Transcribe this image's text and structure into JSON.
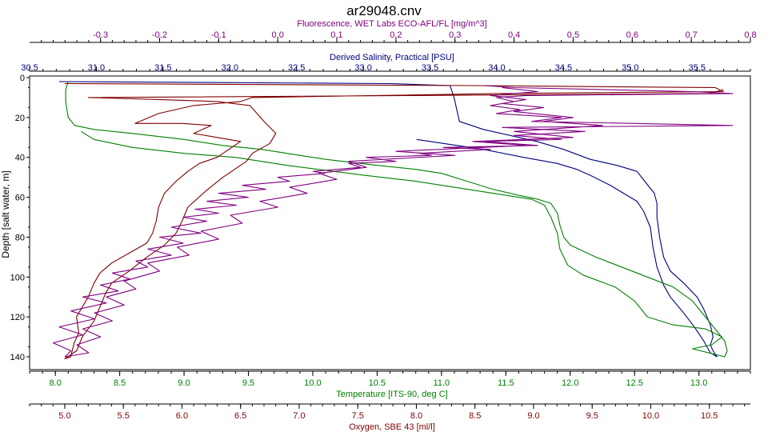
{
  "chart_data": {
    "type": "line",
    "title": "ar29048.cnv",
    "grid": false,
    "legend": "none",
    "y_axis": {
      "label": "Depth [salt water, m]",
      "range": [
        0,
        145
      ],
      "inverted": true,
      "ticks": [
        0,
        20,
        40,
        60,
        80,
        100,
        120,
        140
      ]
    },
    "x_axes": [
      {
        "id": "fluorescence",
        "position": "top-outer",
        "label": "Fluorescence, WET Labs ECO-AFL/FL [mg/m^3]",
        "color": "#800080",
        "range": [
          -0.42,
          0.8
        ],
        "ticks": [
          -0.3,
          -0.2,
          -0.1,
          0.0,
          0.1,
          0.2,
          0.3,
          0.4,
          0.5,
          0.6,
          0.7,
          0.8
        ],
        "tick_labels": [
          "-0.3",
          "-0.2",
          "-0.1",
          "0.0",
          "0.1",
          "0.2",
          "0.3",
          "0.4",
          "0.5",
          "0.6",
          "0.7",
          "0.8"
        ]
      },
      {
        "id": "salinity",
        "position": "top-inner",
        "label": "Derived Salinity, Practical [PSU]",
        "color": "#000080",
        "range": [
          30.5,
          35.9
        ],
        "ticks": [
          30.5,
          31.0,
          31.5,
          32.0,
          32.5,
          33.0,
          33.5,
          34.0,
          34.5,
          35.0,
          35.5
        ],
        "tick_labels": [
          "30.5",
          "31.0",
          "31.5",
          "32.0",
          "32.5",
          "33.0",
          "33.5",
          "34.0",
          "34.5",
          "35.0",
          "35.5"
        ]
      },
      {
        "id": "temperature",
        "position": "bottom-inner",
        "label": "Temperature [ITS-90, deg C]",
        "color": "#008000",
        "range": [
          7.8,
          13.4
        ],
        "ticks": [
          8.0,
          8.5,
          9.0,
          9.5,
          10.0,
          10.5,
          11.0,
          11.5,
          12.0,
          12.5,
          13.0
        ],
        "tick_labels": [
          "8.0",
          "8.5",
          "9.0",
          "9.5",
          "10.0",
          "10.5",
          "11.0",
          "11.5",
          "12.0",
          "12.5",
          "13.0"
        ]
      },
      {
        "id": "oxygen",
        "position": "bottom-outer",
        "label": "Oxygen, SBE 43 [ml/l]",
        "color": "#800000",
        "range": [
          4.7,
          10.85
        ],
        "ticks": [
          5.0,
          5.5,
          6.0,
          6.5,
          7.0,
          7.5,
          8.0,
          8.5,
          9.0,
          9.5,
          10.0,
          10.5
        ],
        "tick_labels": [
          "5.0",
          "5.5",
          "6.0",
          "6.5",
          "7.0",
          "7.5",
          "8.0",
          "8.5",
          "9.0",
          "9.5",
          "10.0",
          "10.5"
        ]
      }
    ],
    "series": [
      {
        "axis": "salinity",
        "color": "#000080",
        "points": [
          [
            30.72,
            2
          ],
          [
            33.2,
            3
          ],
          [
            33.65,
            4
          ],
          [
            33.68,
            10
          ],
          [
            33.7,
            16
          ],
          [
            33.72,
            22
          ],
          [
            33.9,
            26
          ],
          [
            34.1,
            29
          ],
          [
            34.3,
            32
          ],
          [
            34.5,
            36
          ],
          [
            34.7,
            41
          ],
          [
            34.9,
            44
          ],
          [
            35.05,
            47
          ],
          [
            35.12,
            53
          ],
          [
            35.18,
            58
          ],
          [
            35.2,
            63
          ],
          [
            35.2,
            70
          ],
          [
            35.22,
            80
          ],
          [
            35.25,
            90
          ],
          [
            35.3,
            97
          ],
          [
            35.4,
            103
          ],
          [
            35.5,
            110
          ],
          [
            35.55,
            116
          ],
          [
            35.6,
            124
          ],
          [
            35.62,
            130
          ],
          [
            35.6,
            134
          ],
          [
            35.62,
            137
          ],
          [
            35.65,
            140
          ],
          [
            35.6,
            138
          ],
          [
            35.55,
            132
          ],
          [
            35.48,
            125
          ],
          [
            35.4,
            118
          ],
          [
            35.3,
            110
          ],
          [
            35.25,
            104
          ],
          [
            35.2,
            95
          ],
          [
            35.17,
            85
          ],
          [
            35.15,
            75
          ],
          [
            35.1,
            67
          ],
          [
            35.05,
            62
          ],
          [
            34.95,
            58
          ],
          [
            34.85,
            54
          ],
          [
            34.7,
            49
          ],
          [
            34.6,
            46
          ],
          [
            34.45,
            43
          ],
          [
            34.2,
            40
          ],
          [
            33.9,
            36
          ],
          [
            33.6,
            33
          ],
          [
            33.4,
            31
          ]
        ]
      },
      {
        "axis": "temperature",
        "color": "#008000",
        "points": [
          [
            8.1,
            2
          ],
          [
            8.08,
            6
          ],
          [
            8.08,
            12
          ],
          [
            8.1,
            20
          ],
          [
            8.15,
            24
          ],
          [
            8.3,
            26
          ],
          [
            8.6,
            28
          ],
          [
            9.0,
            31
          ],
          [
            9.3,
            34
          ],
          [
            9.6,
            36
          ],
          [
            9.8,
            38
          ],
          [
            10.1,
            41
          ],
          [
            10.5,
            44
          ],
          [
            10.8,
            46
          ],
          [
            11.0,
            48
          ],
          [
            11.2,
            52
          ],
          [
            11.4,
            56
          ],
          [
            11.6,
            59
          ],
          [
            11.75,
            61
          ],
          [
            11.85,
            63
          ],
          [
            11.9,
            68
          ],
          [
            11.92,
            74
          ],
          [
            11.95,
            80
          ],
          [
            12.0,
            84
          ],
          [
            12.2,
            90
          ],
          [
            12.4,
            95
          ],
          [
            12.6,
            100
          ],
          [
            12.8,
            105
          ],
          [
            12.95,
            112
          ],
          [
            13.05,
            120
          ],
          [
            13.15,
            128
          ],
          [
            13.2,
            132
          ],
          [
            13.22,
            137
          ],
          [
            13.2,
            140
          ],
          [
            12.95,
            136
          ],
          [
            13.1,
            134
          ],
          [
            13.18,
            130
          ],
          [
            13.05,
            126
          ],
          [
            12.8,
            124
          ],
          [
            12.6,
            120
          ],
          [
            12.5,
            112
          ],
          [
            12.35,
            105
          ],
          [
            12.1,
            99
          ],
          [
            11.98,
            94
          ],
          [
            11.92,
            86
          ],
          [
            11.9,
            78
          ],
          [
            11.85,
            70
          ],
          [
            11.8,
            64
          ],
          [
            11.7,
            61
          ],
          [
            11.4,
            58
          ],
          [
            11.1,
            55
          ],
          [
            10.8,
            52
          ],
          [
            10.4,
            49
          ],
          [
            9.8,
            44
          ],
          [
            9.4,
            40
          ],
          [
            9.0,
            38
          ],
          [
            8.6,
            35
          ],
          [
            8.3,
            31
          ],
          [
            8.2,
            27
          ]
        ]
      },
      {
        "axis": "oxygen",
        "color": "#800000",
        "points": [
          [
            5.0,
            3
          ],
          [
            8.5,
            4
          ],
          [
            10.55,
            5
          ],
          [
            10.62,
            7
          ],
          [
            8.7,
            8
          ],
          [
            6.6,
            10
          ],
          [
            6.5,
            12
          ],
          [
            6.1,
            14
          ],
          [
            5.8,
            18
          ],
          [
            5.6,
            23
          ],
          [
            6.0,
            23
          ],
          [
            6.25,
            24
          ],
          [
            6.1,
            28
          ],
          [
            6.3,
            30
          ],
          [
            6.5,
            32
          ],
          [
            6.4,
            36
          ],
          [
            6.3,
            40
          ],
          [
            6.15,
            43
          ],
          [
            6.05,
            47
          ],
          [
            5.95,
            52
          ],
          [
            5.85,
            58
          ],
          [
            5.8,
            65
          ],
          [
            5.78,
            72
          ],
          [
            5.75,
            78
          ],
          [
            5.7,
            83
          ],
          [
            5.55,
            88
          ],
          [
            5.4,
            93
          ],
          [
            5.3,
            98
          ],
          [
            5.25,
            103
          ],
          [
            5.2,
            110
          ],
          [
            5.15,
            115
          ],
          [
            5.1,
            120
          ],
          [
            5.12,
            128
          ],
          [
            5.08,
            133
          ],
          [
            5.05,
            140
          ],
          [
            5.0,
            141
          ],
          [
            5.1,
            137
          ],
          [
            5.15,
            130
          ],
          [
            5.25,
            122
          ],
          [
            5.3,
            115
          ],
          [
            5.35,
            108
          ],
          [
            5.4,
            103
          ],
          [
            5.55,
            97
          ],
          [
            5.7,
            90
          ],
          [
            5.85,
            84
          ],
          [
            5.95,
            78
          ],
          [
            6.0,
            72
          ],
          [
            6.05,
            65
          ],
          [
            6.2,
            57
          ],
          [
            6.35,
            50
          ],
          [
            6.55,
            42
          ],
          [
            6.6,
            38
          ],
          [
            6.75,
            33
          ],
          [
            6.8,
            28
          ],
          [
            6.7,
            22
          ],
          [
            6.58,
            14
          ],
          [
            6.3,
            12
          ],
          [
            5.8,
            11
          ],
          [
            5.2,
            10
          ],
          [
            8.0,
            9
          ],
          [
            10.5,
            8
          ],
          [
            10.62,
            6
          ]
        ]
      },
      {
        "axis": "fluorescence",
        "color": "#800080",
        "points": [
          [
            0.35,
            4
          ],
          [
            0.4,
            5
          ],
          [
            0.7,
            7
          ],
          [
            0.77,
            8
          ],
          [
            0.42,
            9
          ],
          [
            0.37,
            10
          ],
          [
            0.4,
            12
          ],
          [
            0.36,
            14
          ],
          [
            0.41,
            16
          ],
          [
            0.37,
            18
          ],
          [
            0.48,
            20
          ],
          [
            0.43,
            22
          ],
          [
            0.77,
            24
          ],
          [
            0.38,
            25
          ],
          [
            0.52,
            27
          ],
          [
            0.4,
            29
          ],
          [
            0.48,
            31
          ],
          [
            0.35,
            32
          ],
          [
            0.44,
            34
          ],
          [
            0.28,
            35
          ],
          [
            0.36,
            36
          ],
          [
            0.24,
            38
          ],
          [
            0.26,
            39
          ],
          [
            0.15,
            40
          ],
          [
            0.2,
            42
          ],
          [
            0.12,
            43
          ],
          [
            0.14,
            45
          ],
          [
            0.06,
            47
          ],
          [
            0.08,
            48
          ],
          [
            0.0,
            50
          ],
          [
            0.02,
            52
          ],
          [
            -0.06,
            54
          ],
          [
            -0.02,
            56
          ],
          [
            -0.1,
            58
          ],
          [
            -0.05,
            60
          ],
          [
            -0.12,
            62
          ],
          [
            -0.07,
            64
          ],
          [
            -0.14,
            66
          ],
          [
            -0.1,
            68
          ],
          [
            -0.16,
            70
          ],
          [
            -0.12,
            72
          ],
          [
            -0.18,
            75
          ],
          [
            -0.13,
            78
          ],
          [
            -0.2,
            80
          ],
          [
            -0.16,
            83
          ],
          [
            -0.22,
            86
          ],
          [
            -0.18,
            89
          ],
          [
            -0.24,
            92
          ],
          [
            -0.22,
            95
          ],
          [
            -0.28,
            98
          ],
          [
            -0.25,
            101
          ],
          [
            -0.3,
            104
          ],
          [
            -0.27,
            107
          ],
          [
            -0.33,
            110
          ],
          [
            -0.29,
            113
          ],
          [
            -0.35,
            117
          ],
          [
            -0.31,
            121
          ],
          [
            -0.37,
            125
          ],
          [
            -0.33,
            129
          ],
          [
            -0.38,
            133
          ],
          [
            -0.35,
            137
          ],
          [
            -0.36,
            140
          ],
          [
            -0.32,
            138
          ],
          [
            -0.34,
            134
          ],
          [
            -0.3,
            130
          ],
          [
            -0.33,
            126
          ],
          [
            -0.28,
            122
          ],
          [
            -0.31,
            118
          ],
          [
            -0.26,
            114
          ],
          [
            -0.29,
            110
          ],
          [
            -0.24,
            106
          ],
          [
            -0.26,
            102
          ],
          [
            -0.2,
            97
          ],
          [
            -0.22,
            93
          ],
          [
            -0.15,
            89
          ],
          [
            -0.17,
            85
          ],
          [
            -0.1,
            81
          ],
          [
            -0.13,
            77
          ],
          [
            -0.06,
            73
          ],
          [
            -0.08,
            69
          ],
          [
            0.0,
            65
          ],
          [
            -0.03,
            62
          ],
          [
            0.05,
            58
          ],
          [
            0.02,
            55
          ],
          [
            0.1,
            51
          ],
          [
            0.07,
            48
          ],
          [
            0.15,
            45
          ],
          [
            0.12,
            42
          ],
          [
            0.3,
            39
          ],
          [
            0.2,
            37
          ],
          [
            0.42,
            34
          ],
          [
            0.33,
            32
          ],
          [
            0.5,
            30
          ],
          [
            0.4,
            27
          ],
          [
            0.55,
            24
          ],
          [
            0.45,
            22
          ],
          [
            0.5,
            20
          ],
          [
            0.4,
            17
          ],
          [
            0.45,
            15
          ],
          [
            0.38,
            13
          ],
          [
            0.42,
            11
          ],
          [
            0.36,
            9
          ],
          [
            0.44,
            7
          ],
          [
            0.38,
            5
          ]
        ]
      }
    ]
  }
}
